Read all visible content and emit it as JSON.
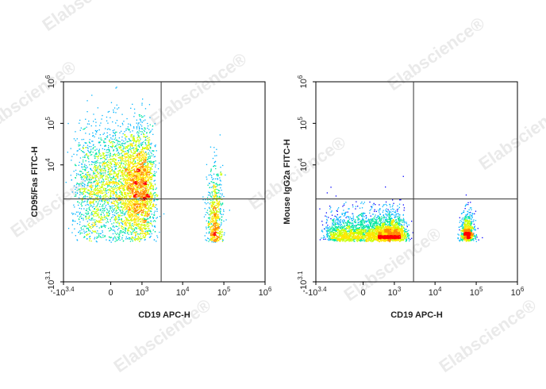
{
  "watermark": "Elabscience®",
  "chart_data": [
    {
      "type": "scatter",
      "style": "density-dot-plot",
      "xlabel": "CD19 APC-H",
      "ylabel": "CD95/Fas FITC-H",
      "x_scale": "biexponential",
      "y_scale": "biexponential",
      "xlim": [
        -2512,
        1000000
      ],
      "ylim": [
        -1259,
        1000000
      ],
      "x_ticks": [
        {
          "base": "-10",
          "exp": "3.4"
        },
        {
          "base": "0",
          "exp": ""
        },
        {
          "base": "10",
          "exp": "3"
        },
        {
          "base": "10",
          "exp": "4"
        },
        {
          "base": "10",
          "exp": "5"
        },
        {
          "base": "10",
          "exp": "6"
        }
      ],
      "y_ticks": [
        {
          "base": "-10",
          "exp": "3.1"
        },
        {
          "base": "10",
          "exp": "4"
        },
        {
          "base": "10",
          "exp": "5"
        },
        {
          "base": "10",
          "exp": "6"
        }
      ],
      "gate": {
        "x": 3000,
        "y": 1500
      },
      "colormap": [
        "#0000ff",
        "#00b4ff",
        "#00e6a0",
        "#c8ff00",
        "#ffe600",
        "#ff8c00",
        "#ff0000"
      ],
      "populations": [
        {
          "x_center": 400,
          "x_spread": 700,
          "y_center": 3000,
          "y_spread": 2.6,
          "count": 4200
        },
        {
          "x_center": 60000,
          "x_spread": 0.35,
          "y_center": 500,
          "y_spread": 2.2,
          "count": 650
        }
      ]
    },
    {
      "type": "scatter",
      "style": "density-dot-plot",
      "xlabel": "CD19 APC-H",
      "ylabel": "Mouse IgG2a FITC-H",
      "x_scale": "biexponential",
      "y_scale": "biexponential",
      "xlim": [
        -2512,
        1000000
      ],
      "ylim": [
        -1259,
        1000000
      ],
      "x_ticks": [
        {
          "base": "-10",
          "exp": "3.4"
        },
        {
          "base": "0",
          "exp": ""
        },
        {
          "base": "10",
          "exp": "3"
        },
        {
          "base": "10",
          "exp": "4"
        },
        {
          "base": "10",
          "exp": "5"
        },
        {
          "base": "10",
          "exp": "6"
        }
      ],
      "y_ticks": [
        {
          "base": "-10",
          "exp": "3.1"
        },
        {
          "base": "10",
          "exp": "4"
        },
        {
          "base": "10",
          "exp": "5"
        },
        {
          "base": "10",
          "exp": "6"
        }
      ],
      "gate": {
        "x": 3000,
        "y": 1500
      },
      "colormap": [
        "#0000ff",
        "#00b4ff",
        "#00e6a0",
        "#c8ff00",
        "#ffe600",
        "#ff8c00",
        "#ff0000"
      ],
      "populations": [
        {
          "x_center": 300,
          "x_spread": 700,
          "y_center": 150,
          "y_spread": 1.3,
          "count": 3200
        },
        {
          "x_center": 60000,
          "x_spread": 0.3,
          "y_center": 150,
          "y_spread": 1.2,
          "count": 700
        }
      ]
    }
  ]
}
